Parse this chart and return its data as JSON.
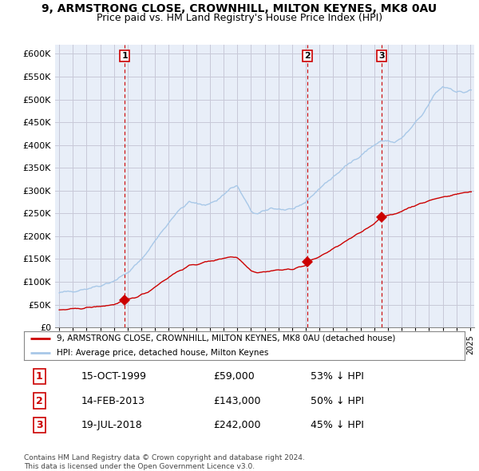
{
  "title": "9, ARMSTRONG CLOSE, CROWNHILL, MILTON KEYNES, MK8 0AU",
  "subtitle": "Price paid vs. HM Land Registry's House Price Index (HPI)",
  "title_fontsize": 10,
  "subtitle_fontsize": 9,
  "ylim": [
    0,
    620000
  ],
  "ytick_labels": [
    "£0",
    "£50K",
    "£100K",
    "£150K",
    "£200K",
    "£250K",
    "£300K",
    "£350K",
    "£400K",
    "£450K",
    "£500K",
    "£550K",
    "£600K"
  ],
  "ytick_values": [
    0,
    50000,
    100000,
    150000,
    200000,
    250000,
    300000,
    350000,
    400000,
    450000,
    500000,
    550000,
    600000
  ],
  "hpi_color": "#a8c8e8",
  "price_color": "#cc0000",
  "grid_color": "#c8c8d8",
  "bg_color": "#e8eef8",
  "sale_points": [
    {
      "date_num": 1999.79,
      "price": 59000,
      "label": "1"
    },
    {
      "date_num": 2013.12,
      "price": 143000,
      "label": "2"
    },
    {
      "date_num": 2018.54,
      "price": 242000,
      "label": "3"
    }
  ],
  "vline_color": "#cc0000",
  "legend_line_label": "9, ARMSTRONG CLOSE, CROWNHILL, MILTON KEYNES, MK8 0AU (detached house)",
  "legend_hpi_label": "HPI: Average price, detached house, Milton Keynes",
  "table_data": [
    {
      "num": "1",
      "date": "15-OCT-1999",
      "price": "£59,000",
      "hpi": "53% ↓ HPI"
    },
    {
      "num": "2",
      "date": "14-FEB-2013",
      "price": "£143,000",
      "hpi": "50% ↓ HPI"
    },
    {
      "num": "3",
      "date": "19-JUL-2018",
      "price": "£242,000",
      "hpi": "45% ↓ HPI"
    }
  ],
  "footer": "Contains HM Land Registry data © Crown copyright and database right 2024.\nThis data is licensed under the Open Government Licence v3.0.",
  "xlim_start": 1994.7,
  "xlim_end": 2025.3
}
